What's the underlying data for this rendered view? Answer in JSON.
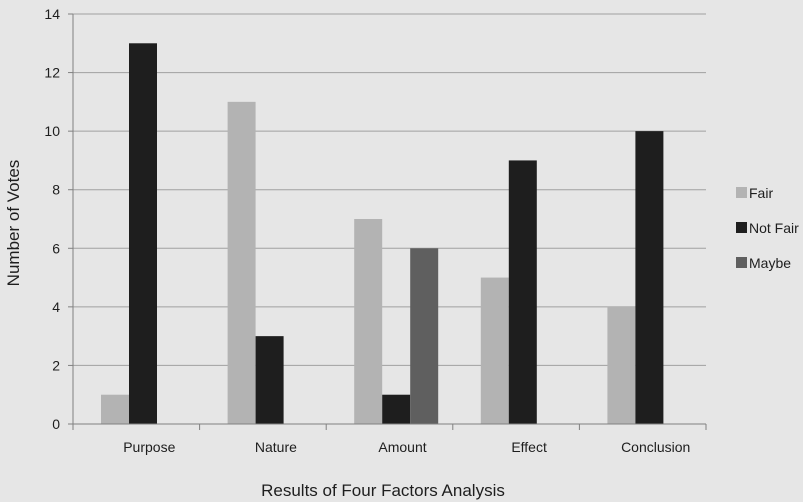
{
  "chart_data": {
    "type": "bar",
    "categories": [
      "Purpose",
      "Nature",
      "Amount",
      "Effect",
      "Conclusion"
    ],
    "series": [
      {
        "name": "Fair",
        "values": [
          1,
          11,
          7,
          5,
          4
        ],
        "color": "#b3b3b3"
      },
      {
        "name": "Not Fair",
        "values": [
          13,
          3,
          1,
          9,
          10
        ],
        "color": "#1e1e1e"
      },
      {
        "name": "Maybe",
        "values": [
          0,
          0,
          6,
          0,
          0
        ],
        "color": "#5f5f5f"
      }
    ],
    "title": "",
    "xlabel": "Results of Four Factors Analysis",
    "ylabel": "Number of Votes",
    "ylim": [
      0,
      14
    ],
    "yticks": [
      "0",
      "2",
      "4",
      "6",
      "8",
      "10",
      "12",
      "14"
    ],
    "grid": true,
    "legend_position": "right"
  },
  "colors": {
    "background": "#e6e6e6",
    "gridline": "#a0a0a0",
    "axis": "#808080"
  }
}
